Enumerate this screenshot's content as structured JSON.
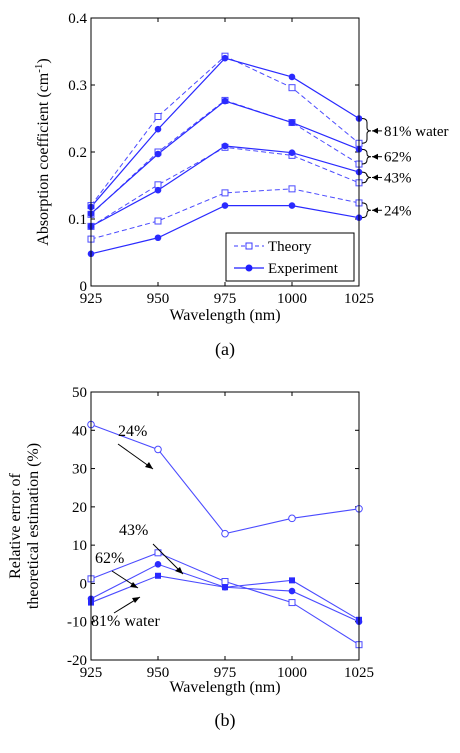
{
  "chart_data": [
    {
      "type": "line",
      "panel_label": "(a)",
      "xlabel": "Wavelength (nm)",
      "ylabel": "Absorption coefficient (cm⁻¹)",
      "ylabel_parts": {
        "main": "Absorption coefficient (cm",
        "sup": "-1",
        "close": ")"
      },
      "x": [
        925,
        950,
        975,
        1000,
        1025
      ],
      "xlim": [
        925,
        1025
      ],
      "ylim": [
        0,
        0.4
      ],
      "xticks": [
        925,
        950,
        975,
        1000,
        1025
      ],
      "yticks": [
        0,
        0.1,
        0.2,
        0.3,
        0.4
      ],
      "ytick_labels": [
        "0",
        "0.1",
        "0.2",
        "0.3",
        "0.4"
      ],
      "legend": {
        "position": "bottom-right",
        "entries": [
          "Theory",
          "Experiment"
        ]
      },
      "groups": [
        {
          "label": "81% water",
          "theory": [
            0.12,
            0.253,
            0.343,
            0.296,
            0.213
          ],
          "experiment": [
            0.118,
            0.234,
            0.34,
            0.312,
            0.25
          ]
        },
        {
          "label": "62%",
          "theory": [
            0.107,
            0.2,
            0.277,
            0.244,
            0.182
          ],
          "experiment": [
            0.108,
            0.197,
            0.276,
            0.244,
            0.204
          ]
        },
        {
          "label": "43%",
          "theory": [
            0.089,
            0.151,
            0.207,
            0.195,
            0.154
          ],
          "experiment": [
            0.089,
            0.143,
            0.209,
            0.199,
            0.17
          ]
        },
        {
          "label": "24%",
          "theory": [
            0.07,
            0.097,
            0.139,
            0.145,
            0.124
          ],
          "experiment": [
            0.048,
            0.072,
            0.12,
            0.12,
            0.102
          ]
        }
      ]
    },
    {
      "type": "line",
      "panel_label": "(b)",
      "xlabel": "Wavelength (nm)",
      "ylabel_lines": [
        "Relative error of",
        "theoretical estimation (%)"
      ],
      "x": [
        925,
        950,
        975,
        1000,
        1025
      ],
      "xlim": [
        925,
        1025
      ],
      "ylim": [
        -20,
        50
      ],
      "xticks": [
        925,
        950,
        975,
        1000,
        1025
      ],
      "yticks": [
        -20,
        -10,
        0,
        10,
        20,
        30,
        40,
        50
      ],
      "series": [
        {
          "name": "24%",
          "marker": "circle-open",
          "values": [
            41.5,
            35,
            13,
            17,
            19.5
          ]
        },
        {
          "name": "43%",
          "marker": "square-open",
          "values": [
            1.2,
            8,
            0.5,
            -5,
            -16
          ]
        },
        {
          "name": "62%",
          "marker": "circle-filled",
          "values": [
            -4,
            5,
            -1,
            -2,
            -10
          ]
        },
        {
          "name": "81% water",
          "marker": "square-filled",
          "values": [
            -5,
            2,
            -1,
            0.8,
            -9.5
          ]
        }
      ]
    }
  ]
}
